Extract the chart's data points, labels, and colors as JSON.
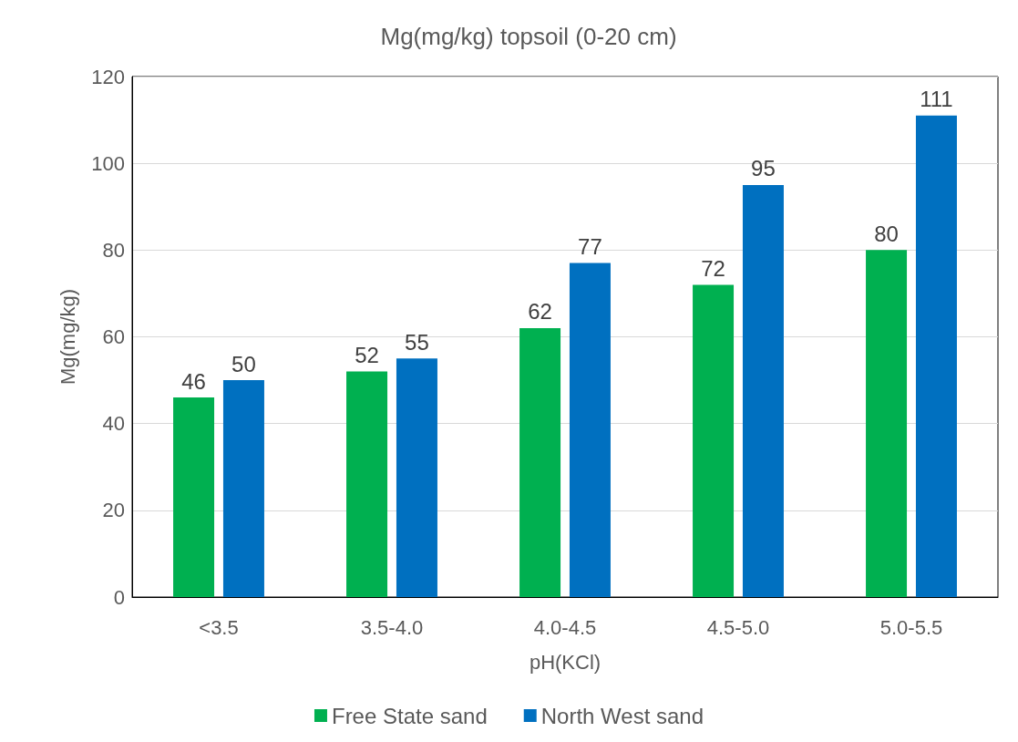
{
  "chart_data": {
    "type": "bar",
    "title": "Mg(mg/kg) topsoil (0-20 cm)",
    "xlabel": "pH(KCl)",
    "ylabel": "Mg(mg/kg)",
    "categories": [
      "<3.5",
      "3.5-4.0",
      "4.0-4.5",
      "4.5-5.0",
      "5.0-5.5"
    ],
    "series": [
      {
        "name": "Free State sand",
        "color": "#00b050",
        "values": [
          46,
          52,
          62,
          72,
          80
        ]
      },
      {
        "name": "North West sand",
        "color": "#0070c0",
        "values": [
          50,
          55,
          77,
          95,
          111
        ]
      }
    ],
    "ylim": [
      0,
      120
    ],
    "yticks": [
      0,
      20,
      40,
      60,
      80,
      100,
      120
    ],
    "grid": "y",
    "legend": "bottom",
    "data_labels": true
  }
}
